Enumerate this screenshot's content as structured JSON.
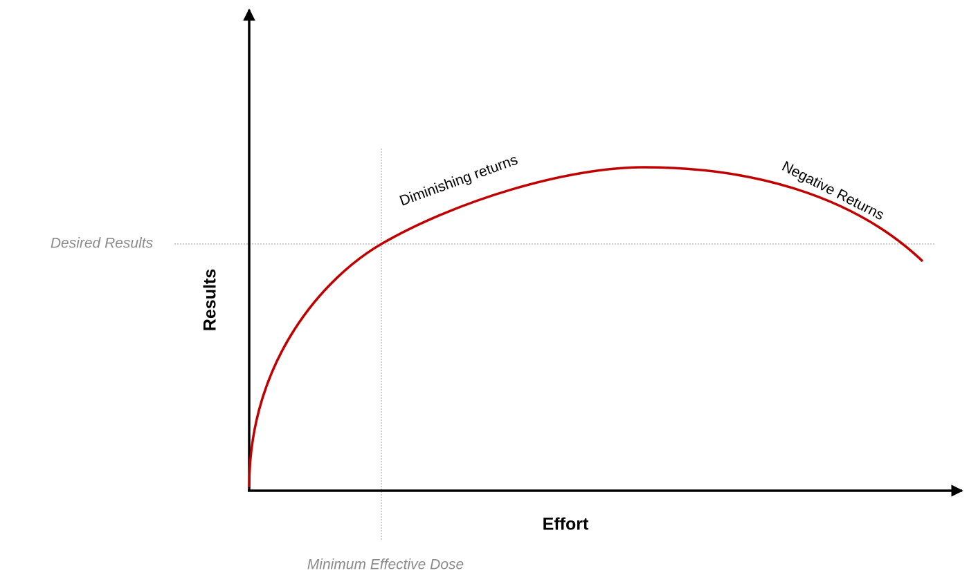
{
  "axes": {
    "x_label": "Effort",
    "y_label": "Results"
  },
  "reference_lines": {
    "horizontal": "Desired Results",
    "vertical": "Minimum Effective Dose"
  },
  "annotations": [
    "Diminishing returns",
    "Negative Returns"
  ]
}
